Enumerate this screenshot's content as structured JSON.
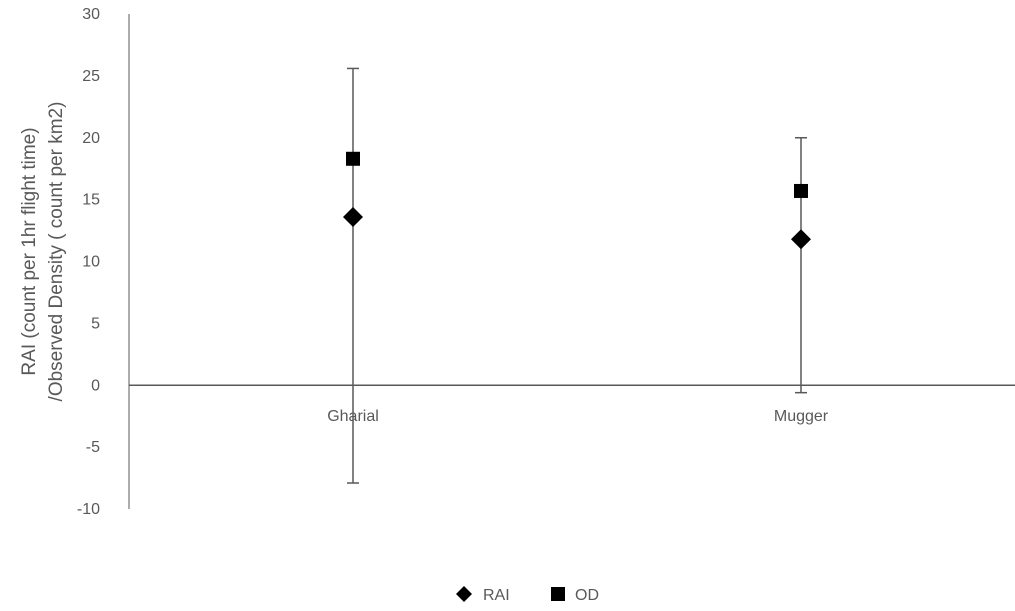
{
  "chart_data": {
    "type": "scatter",
    "categories": [
      "Gharial",
      "Mugger"
    ],
    "series": [
      {
        "name": "RAI",
        "marker": "diamond",
        "values": [
          13.6,
          11.8
        ]
      },
      {
        "name": "OD",
        "marker": "square",
        "values": [
          18.3,
          15.7
        ],
        "error_upper": [
          25.6,
          20.0
        ],
        "error_lower": [
          -7.9,
          -0.6
        ]
      }
    ],
    "ylabel_lines": [
      "RAI (count per 1hr flight time)",
      "/Observed Density ( count per km2)"
    ],
    "xlabel": "",
    "ylim": [
      -10,
      30
    ],
    "yticks": [
      30,
      25,
      20,
      15,
      10,
      5,
      0,
      -5,
      -10
    ],
    "grid": false,
    "legend_position": "bottom",
    "colors": {
      "marker": "#000000",
      "axis": "#595959",
      "error_bar": "#595959",
      "tick_text": "#595959"
    }
  }
}
